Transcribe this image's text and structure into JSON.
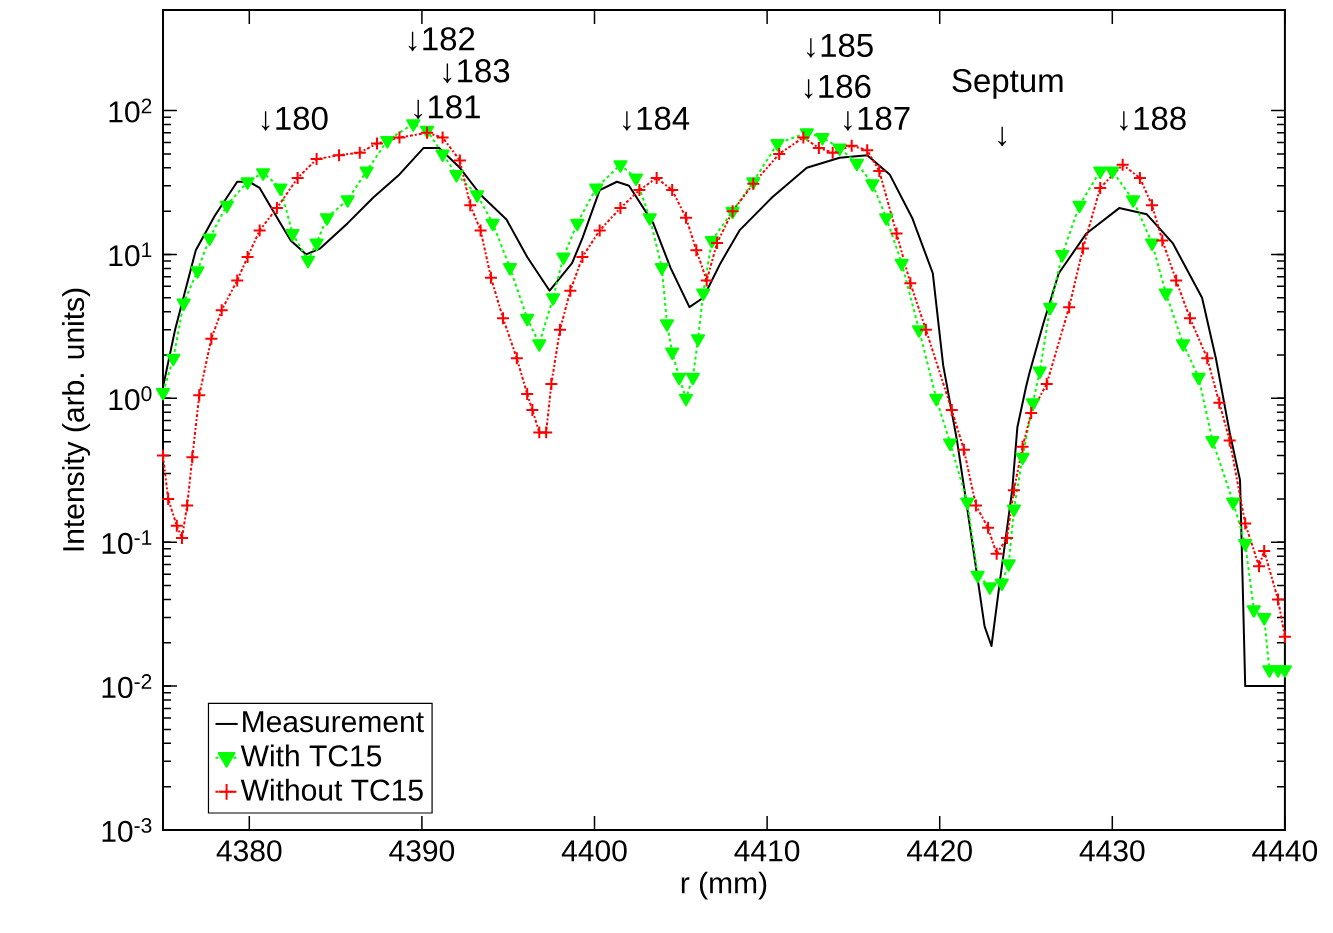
{
  "chart_data": {
    "type": "line",
    "xlabel": "r (mm)",
    "ylabel": "Intensity (arb. units)",
    "log": "y",
    "xlim": [
      4375,
      4440
    ],
    "ylim": [
      0.001,
      500
    ],
    "xticks": [
      4380,
      4390,
      4400,
      4410,
      4420,
      4430,
      4440
    ],
    "yticks": [
      {
        "value": 0.001,
        "label": "10$^{-3}$"
      },
      {
        "value": 0.01,
        "label": "10$^{-2}$"
      },
      {
        "value": 0.1,
        "label": "10$^{-1}$"
      },
      {
        "value": 1,
        "label": "10$^{0}$"
      },
      {
        "value": 10,
        "label": "10$^{1}$"
      },
      {
        "value": 100,
        "label": "10$^{2}$"
      }
    ],
    "grid": false,
    "legend": "bottom left",
    "series": [
      {
        "name": "Measurement",
        "color": "#000000",
        "marker": "none",
        "line_style": "solid",
        "x": [
          4375,
          4375.7,
          4376.9,
          4378,
          4379.3,
          4380,
          4380.6,
          4381.8,
          4382.4,
          4383.3,
          4384.1,
          4385.7,
          4387.2,
          4388.7,
          4390.1,
          4391.0,
          4392.2,
          4393.4,
          4394.9,
          4396.1,
          4397.4,
          4398.7,
          4399.3,
          4400.3,
          4401.3,
          4402.0,
          4403.4,
          4404.4,
          4405.5,
          4406.3,
          4407.3,
          4408.4,
          4410.3,
          4412.3,
          4414.2,
          4415.8,
          4417.1,
          4418.4,
          4419.6,
          4420.2,
          4421.0,
          4421.6,
          4422.1,
          4422.6,
          4423.0,
          4423.5,
          4424.2,
          4424.5,
          4425.0,
          4425.2,
          4426.0,
          4426.9,
          4428.5,
          4430.4,
          4432.0,
          4433.5,
          4435.2,
          4436.0,
          4436.8,
          4437.4,
          4437.5,
          4437.7,
          4440
        ],
        "values": [
          1.2,
          3.0,
          10.7,
          18.6,
          32,
          32,
          29,
          16.5,
          12.5,
          10,
          11,
          16.5,
          25,
          36,
          55,
          55,
          40,
          26,
          17.5,
          9.6,
          5.6,
          8.7,
          13,
          28,
          32,
          30,
          16.5,
          8.1,
          4.3,
          5.0,
          8.7,
          14.7,
          25,
          40,
          47,
          49,
          36,
          18,
          7.4,
          1.7,
          0.51,
          0.17,
          0.067,
          0.026,
          0.019,
          0.055,
          0.23,
          0.63,
          1.2,
          1.5,
          3.3,
          7.4,
          14,
          21,
          19,
          12,
          5.0,
          1.9,
          0.58,
          0.27,
          0.093,
          0.01,
          0.01
        ]
      },
      {
        "name": "With TC15",
        "color": "#00ff00",
        "marker": "triangle",
        "line_style": "dashed",
        "x": [
          4375,
          4375.6,
          4376.2,
          4377.0,
          4377.7,
          4378.7,
          4379.9,
          4380.8,
          4381.8,
          4382.5,
          4383.4,
          4383.9,
          4384.5,
          4385.7,
          4386.8,
          4388.0,
          4389.5,
          4390.3,
          4391.2,
          4392.0,
          4393.2,
          4394.1,
          4395.1,
          4396.1,
          4396.8,
          4397.6,
          4398.2,
          4399.0,
          4400.1,
          4401.5,
          4402.4,
          4403.2,
          4403.9,
          4404.2,
          4404.5,
          4404.9,
          4405.3,
          4405.7,
          4406.0,
          4406.3,
          4406.8,
          4408.0,
          4409.2,
          4410.6,
          4412.3,
          4413.2,
          4414.2,
          4415.2,
          4416.1,
          4416.9,
          4417.8,
          4418.8,
          4419.8,
          4420.6,
          4421.6,
          4422.2,
          4422.9,
          4423.6,
          4424.0,
          4424.3,
          4424.8,
          4425.4,
          4425.8,
          4426.4,
          4427.1,
          4428.1,
          4429.3,
          4430.0,
          4431.2,
          4432.3,
          4433.1,
          4434.1,
          4435.0,
          4435.8,
          4437.0,
          4437.7,
          4438.2,
          4438.8,
          4439.1,
          4439.6,
          4440
        ],
        "values": [
          1.1,
          1.9,
          4.6,
          7.7,
          13,
          22,
          32,
          37,
          29,
          14,
          9.1,
          12,
          18,
          24,
          38,
          62,
          81,
          73,
          50,
          36,
          26,
          16.5,
          8.1,
          3.6,
          2.4,
          5.0,
          9.6,
          16.5,
          29,
          42,
          34,
          18,
          8.1,
          3.3,
          2.1,
          1.4,
          1.0,
          1.4,
          2.6,
          5.4,
          12.5,
          20,
          32,
          59,
          70,
          65,
          55,
          43,
          31,
          18,
          8.7,
          3.0,
          1.0,
          0.49,
          0.19,
          0.059,
          0.049,
          0.052,
          0.071,
          0.17,
          0.39,
          0.93,
          1.55,
          4.3,
          10,
          22,
          38,
          38,
          24,
          12,
          5.4,
          2.4,
          1.4,
          0.51,
          0.19,
          0.098,
          0.034,
          0.03,
          0.013,
          0.013,
          0.013
        ]
      },
      {
        "name": "Without TC15",
        "color": "#ff0000",
        "marker": "cross",
        "line_style": "dashdot",
        "x": [
          4375,
          4375.3,
          4375.8,
          4376.1,
          4376.4,
          4376.7,
          4377.1,
          4377.8,
          4378.4,
          4379.3,
          4379.9,
          4380.6,
          4381.6,
          4382.8,
          4383.9,
          4385.2,
          4386.4,
          4387.4,
          4388.7,
          4390.3,
          4391.2,
          4392.2,
          4392.8,
          4393.4,
          4394.0,
          4394.7,
          4395.5,
          4396.1,
          4396.4,
          4396.8,
          4397.2,
          4397.5,
          4398.0,
          4398.6,
          4399.3,
          4400.3,
          4401.5,
          4402.6,
          4403.6,
          4404.5,
          4405.3,
          4405.9,
          4406.5,
          4407.1,
          4408.0,
          4409.2,
          4410.7,
          4412.1,
          4413.0,
          4413.8,
          4414.9,
          4415.8,
          4416.5,
          4417.5,
          4418.3,
          4419.2,
          4420.7,
          4421.4,
          4422.1,
          4422.8,
          4423.3,
          4423.9,
          4424.3,
          4424.8,
          4425.3,
          4426.2,
          4427.5,
          4428.3,
          4429.3,
          4430.6,
          4431.6,
          4432.3,
          4432.9,
          4433.7,
          4434.5,
          4435.5,
          4436.2,
          4436.8,
          4437.7,
          4438.5,
          4438.8,
          4439.6,
          4440
        ],
        "values": [
          0.4,
          0.2,
          0.13,
          0.107,
          0.18,
          0.39,
          1.05,
          2.6,
          4.1,
          6.6,
          9.6,
          14.7,
          21,
          34,
          46,
          49,
          51,
          59,
          65,
          70,
          65,
          45,
          22,
          14.7,
          6.9,
          3.6,
          1.9,
          1.07,
          0.83,
          0.58,
          0.58,
          1.26,
          3.0,
          5.6,
          9.6,
          14.7,
          21,
          28,
          34,
          28,
          18,
          10.7,
          6.6,
          12,
          20,
          31,
          50,
          65,
          55,
          51,
          57,
          53,
          38,
          14,
          6.3,
          3.0,
          0.83,
          0.44,
          0.18,
          0.126,
          0.083,
          0.107,
          0.23,
          0.46,
          0.79,
          1.26,
          4.3,
          11,
          29,
          42,
          34,
          22,
          12.5,
          6.6,
          3.6,
          1.9,
          0.93,
          0.51,
          0.135,
          0.068,
          0.087,
          0.04,
          0.022
        ]
      }
    ],
    "annotations": [
      "↓180",
      "↓182",
      "↓183",
      "↓181",
      "↓184",
      "↓185",
      "↓186",
      "↓187",
      "Septum",
      "↓",
      "↓188"
    ]
  }
}
